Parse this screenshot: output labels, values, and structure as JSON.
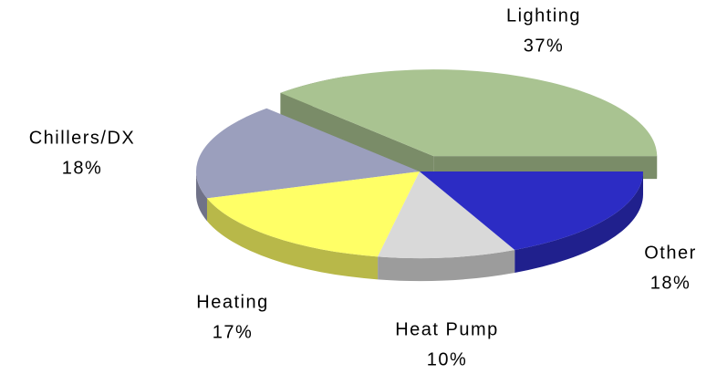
{
  "chart_data": {
    "type": "pie3d",
    "categories": [
      "Lighting",
      "Chillers/DX",
      "Heating",
      "Heat Pump",
      "Other"
    ],
    "values": [
      37,
      18,
      17,
      10,
      18
    ],
    "value_labels": [
      "37%",
      "18%",
      "17%",
      "10%",
      "18%"
    ],
    "colors": [
      "#a9c391",
      "#9b9fbd",
      "#ffff66",
      "#d9d9d9",
      "#2c2cc4"
    ],
    "exploded": [
      "Lighting"
    ]
  }
}
